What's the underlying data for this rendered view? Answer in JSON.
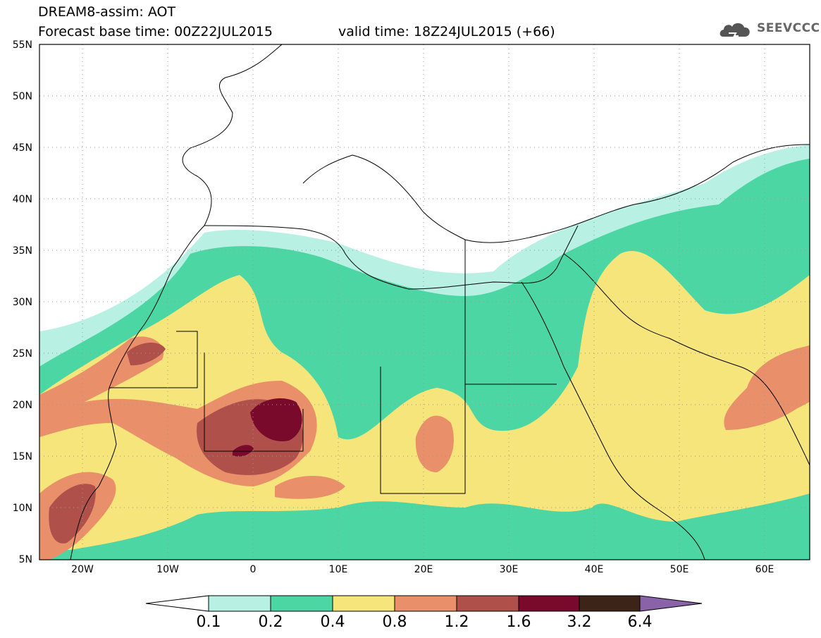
{
  "header": {
    "line1": "DREAM8-assim: AOT",
    "line2": "Forecast base time: 00Z22JUL2015",
    "valid": "valid time: 18Z24JUL2015 (+66)",
    "logo_text": "SEEVCCC",
    "logo_icon": "cloud-icon"
  },
  "map": {
    "lon_range": [
      -25,
      65
    ],
    "lat_range": [
      5,
      55
    ],
    "lat_labels": [
      "55N",
      "50N",
      "45N",
      "40N",
      "35N",
      "30N",
      "25N",
      "20N",
      "15N",
      "10N",
      "5N"
    ],
    "lon_labels": [
      "20W",
      "10W",
      "0",
      "10E",
      "20E",
      "30E",
      "40E",
      "50E",
      "60E"
    ],
    "grid": "dotted",
    "background": "#ffffff",
    "border_color": "#000000"
  },
  "colorbar": {
    "labels": [
      "0.1",
      "0.2",
      "0.4",
      "0.8",
      "1.2",
      "1.6",
      "3.2",
      "6.4"
    ],
    "colors": [
      "#b9f0e4",
      "#4bd6a4",
      "#f5e57a",
      "#e9906a",
      "#b0504a",
      "#7a0a2c",
      "#3c2418",
      "#8a62a8"
    ],
    "under_color": "#ffffff",
    "over_color": "#8a62a8"
  }
}
